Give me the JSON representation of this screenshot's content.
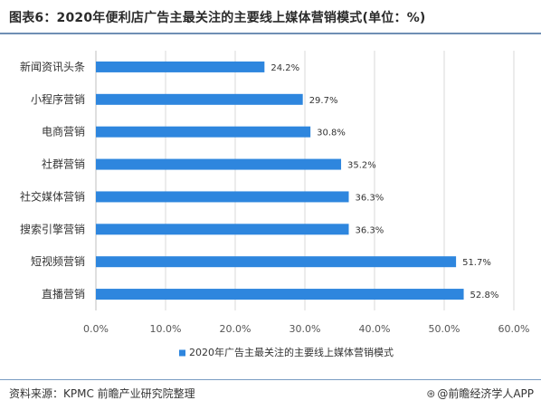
{
  "title": "图表6：2020年便利店广告主最关注的主要线上媒体营销模式(单位：%)",
  "source": "资料来源：KPMC 前瞻产业研究院整理",
  "brand": {
    "icon": "qianzhan-logo-icon",
    "text": "@前瞻经济学人APP"
  },
  "colors": {
    "bar": "#2e86de",
    "title_rule": "#6f8fb4",
    "grid": "#d9d9d9"
  },
  "chart_data": {
    "type": "bar",
    "orientation": "horizontal",
    "categories": [
      "新闻资讯头条",
      "小程序营销",
      "电商营销",
      "社群营销",
      "社交媒体营销",
      "搜索引擎营销",
      "短视频营销",
      "直播营销"
    ],
    "series": [
      {
        "name": "2020年广告主最关注的主要线上媒体营销模式",
        "values": [
          24.2,
          29.7,
          30.8,
          35.2,
          36.3,
          36.3,
          51.7,
          52.8
        ]
      }
    ],
    "value_labels": [
      "24.2%",
      "29.7%",
      "30.8%",
      "35.2%",
      "36.3%",
      "36.3%",
      "51.7%",
      "52.8%"
    ],
    "xlim": [
      0,
      60
    ],
    "xticks": [
      0,
      10,
      20,
      30,
      40,
      50,
      60
    ],
    "xtick_labels": [
      "0.0%",
      "10.0%",
      "20.0%",
      "30.0%",
      "40.0%",
      "50.0%",
      "60.0%"
    ],
    "grid": true,
    "legend_position": "bottom-center"
  }
}
